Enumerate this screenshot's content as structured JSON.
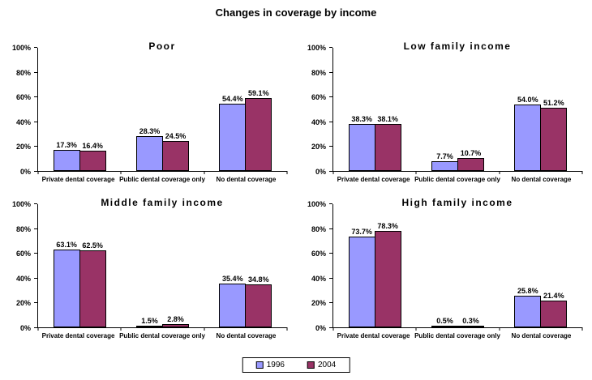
{
  "title": "Changes in coverage by income",
  "axis": {
    "tick_step": 20,
    "tick_suffix": "%"
  },
  "legend": {
    "series": [
      {
        "label": "1996",
        "color": "#9999ff"
      },
      {
        "label": "2004",
        "color": "#993366"
      }
    ]
  },
  "chart_data": [
    {
      "type": "bar",
      "title": "Poor",
      "categories": [
        "Private dental coverage",
        "Public dental coverage only",
        "No dental coverage"
      ],
      "series": [
        {
          "name": "1996",
          "values": [
            17.3,
            28.3,
            54.4
          ]
        },
        {
          "name": "2004",
          "values": [
            16.4,
            24.5,
            59.1
          ]
        }
      ],
      "ylim": [
        0,
        100
      ],
      "ylabel": "",
      "xlabel": ""
    },
    {
      "type": "bar",
      "title": "Low family income",
      "categories": [
        "Private dental coverage",
        "Public dental coverage only",
        "No dental coverage"
      ],
      "series": [
        {
          "name": "1996",
          "values": [
            38.3,
            7.7,
            54.0
          ]
        },
        {
          "name": "2004",
          "values": [
            38.1,
            10.7,
            51.2
          ]
        }
      ],
      "ylim": [
        0,
        100
      ],
      "ylabel": "",
      "xlabel": ""
    },
    {
      "type": "bar",
      "title": "Middle family income",
      "categories": [
        "Private dental coverage",
        "Public dental coverage only",
        "No dental coverage"
      ],
      "series": [
        {
          "name": "1996",
          "values": [
            63.1,
            1.5,
            35.4
          ]
        },
        {
          "name": "2004",
          "values": [
            62.5,
            2.8,
            34.8
          ]
        }
      ],
      "ylim": [
        0,
        100
      ],
      "ylabel": "",
      "xlabel": ""
    },
    {
      "type": "bar",
      "title": "High family income",
      "categories": [
        "Private dental coverage",
        "Public dental coverage only",
        "No dental coverage"
      ],
      "series": [
        {
          "name": "1996",
          "values": [
            73.7,
            0.5,
            25.8
          ]
        },
        {
          "name": "2004",
          "values": [
            78.3,
            0.3,
            21.4
          ]
        }
      ],
      "ylim": [
        0,
        100
      ],
      "ylabel": "",
      "xlabel": ""
    }
  ]
}
